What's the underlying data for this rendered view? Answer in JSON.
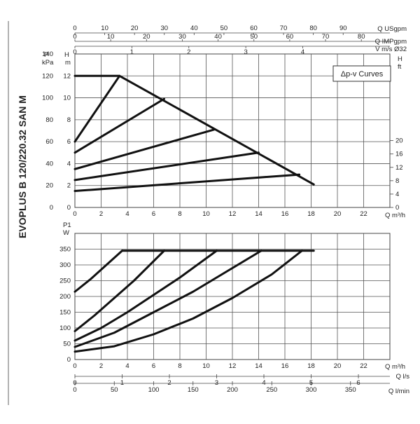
{
  "side_title": "EVOPLUS B 120/220.32 SAN M",
  "legend": "Δp-v Curves",
  "top_axes": {
    "usgpm": {
      "label": "Q USgpm",
      "ticks": [
        "0",
        "10",
        "20",
        "30",
        "40",
        "50",
        "60",
        "70",
        "80",
        "90"
      ],
      "values": [
        0,
        10,
        20,
        30,
        40,
        50,
        60,
        70,
        80,
        90
      ]
    },
    "impgpm": {
      "label": "Q IMPgpm",
      "ticks": [
        "0",
        "10",
        "20",
        "30",
        "40",
        "50",
        "60",
        "70",
        "80"
      ],
      "values": [
        0,
        10,
        20,
        30,
        40,
        50,
        60,
        70,
        80
      ]
    },
    "velocity": {
      "label": "V m/s Ø32",
      "ticks": [
        "0",
        "1",
        "2",
        "3",
        "4"
      ],
      "values": [
        0,
        1,
        2,
        3,
        4
      ]
    }
  },
  "bottom_axes": {
    "ls": {
      "label": "Q l/s",
      "ticks": [
        "0",
        "1",
        "2",
        "3",
        "4",
        "5",
        "6"
      ],
      "values": [
        0,
        1,
        2,
        3,
        4,
        5,
        6
      ]
    },
    "lmin": {
      "label": "Q l/min",
      "ticks": [
        "0",
        "50",
        "100",
        "150",
        "200",
        "250",
        "300",
        "350"
      ],
      "values": [
        0,
        50,
        100,
        150,
        200,
        250,
        300,
        350
      ]
    }
  },
  "chart_data": [
    {
      "type": "line",
      "title": "",
      "xlabel": "Q m³/h",
      "ylabel_left_kpa": "P kPa",
      "ylabel_left_m": "H m",
      "ylabel_right_ft": "H ft",
      "xlim": [
        0,
        24
      ],
      "ylim": [
        0,
        14
      ],
      "x_ticks": [
        "0",
        "2",
        "4",
        "6",
        "8",
        "10",
        "12",
        "14",
        "16",
        "18",
        "20",
        "22"
      ],
      "x_tick_values": [
        0,
        2,
        4,
        6,
        8,
        10,
        12,
        14,
        16,
        18,
        20,
        22
      ],
      "y_ticks_m": [
        "0",
        "2",
        "4",
        "6",
        "8",
        "10",
        "12"
      ],
      "y_ticks_kpa": [
        "0",
        "20",
        "40",
        "60",
        "80",
        "100",
        "120",
        "140"
      ],
      "y_ticks_ft": [
        "0",
        "4",
        "8",
        "12",
        "16",
        "20"
      ],
      "grid": true,
      "series": [
        {
          "x": [
            0,
            3.4,
            18.2
          ],
          "y": [
            12,
            12,
            2.1
          ]
        },
        {
          "x": [
            0,
            3.4
          ],
          "y": [
            6,
            12
          ]
        },
        {
          "x": [
            0,
            6.8
          ],
          "y": [
            5,
            9.9
          ]
        },
        {
          "x": [
            0,
            10.6
          ],
          "y": [
            3.5,
            7.1
          ]
        },
        {
          "x": [
            0,
            14.0
          ],
          "y": [
            2.5,
            5.0
          ]
        },
        {
          "x": [
            0,
            17.1
          ],
          "y": [
            1.5,
            3.0
          ]
        }
      ]
    },
    {
      "type": "line",
      "title": "",
      "xlabel": "Q m³/h",
      "ylabel": "P1 W",
      "xlim": [
        0,
        24
      ],
      "ylim": [
        0,
        400
      ],
      "x_ticks": [
        "0",
        "2",
        "4",
        "6",
        "8",
        "10",
        "12",
        "14",
        "16",
        "18",
        "20",
        "22"
      ],
      "x_tick_values": [
        0,
        2,
        4,
        6,
        8,
        10,
        12,
        14,
        16,
        18,
        20,
        22
      ],
      "y_ticks": [
        "0",
        "50",
        "100",
        "150",
        "200",
        "250",
        "300",
        "350"
      ],
      "y_tick_values": [
        0,
        50,
        100,
        150,
        200,
        250,
        300,
        350
      ],
      "grid": true,
      "series": [
        {
          "x": [
            3.6,
            18.2
          ],
          "y": [
            345,
            345
          ]
        },
        {
          "x": [
            0,
            1.2,
            2.4,
            3.6
          ],
          "y": [
            215,
            255,
            300,
            345
          ]
        },
        {
          "x": [
            0,
            1.5,
            3.0,
            4.5,
            6.8
          ],
          "y": [
            90,
            140,
            195,
            250,
            345
          ]
        },
        {
          "x": [
            0,
            2,
            4,
            6,
            8,
            10.8
          ],
          "y": [
            60,
            100,
            150,
            205,
            260,
            345
          ]
        },
        {
          "x": [
            0,
            3,
            6,
            9,
            12,
            14.2
          ],
          "y": [
            40,
            85,
            150,
            215,
            290,
            345
          ]
        },
        {
          "x": [
            0,
            3,
            6,
            9,
            12,
            15,
            17.3
          ],
          "y": [
            25,
            42,
            80,
            130,
            195,
            270,
            345
          ]
        }
      ]
    }
  ]
}
